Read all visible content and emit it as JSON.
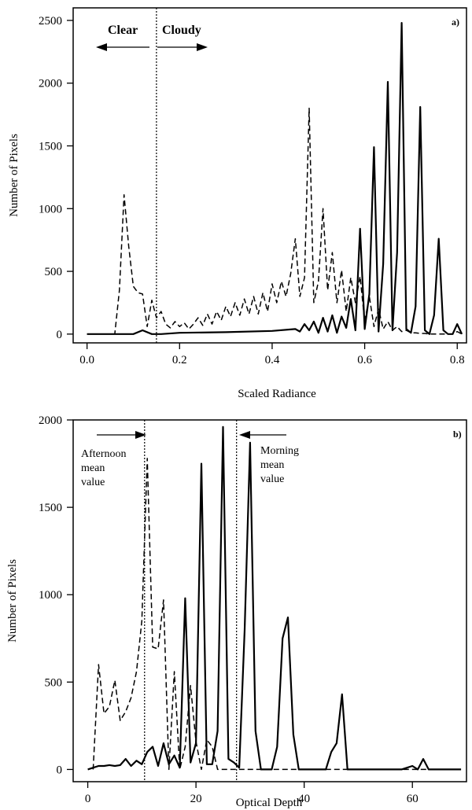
{
  "chart_data": [
    {
      "panel": "a)",
      "type": "line",
      "xlabel": "Scaled Radiance",
      "ylabel": "Number of Pixels",
      "xlim": [
        -0.03,
        0.82
      ],
      "ylim": [
        -70,
        2600
      ],
      "xticks": [
        0.0,
        0.2,
        0.4,
        0.6,
        0.8
      ],
      "xtick_labels": [
        "0.0",
        "0.2",
        "0.4",
        "0.6",
        "0.8"
      ],
      "yticks": [
        0,
        500,
        1000,
        1500,
        2000,
        2500
      ],
      "ytick_labels": [
        "0",
        "500",
        "1000",
        "1500",
        "2000",
        "2500"
      ],
      "threshold_x": 0.15,
      "annotations": {
        "left_label": "Clear",
        "right_label": "Cloudy"
      },
      "series": [
        {
          "style": "dashed",
          "x": [
            0.0,
            0.06,
            0.07,
            0.08,
            0.09,
            0.1,
            0.11,
            0.12,
            0.13,
            0.14,
            0.145,
            0.15,
            0.16,
            0.17,
            0.18,
            0.19,
            0.2,
            0.21,
            0.22,
            0.23,
            0.24,
            0.25,
            0.26,
            0.27,
            0.28,
            0.29,
            0.3,
            0.31,
            0.32,
            0.33,
            0.34,
            0.35,
            0.36,
            0.37,
            0.38,
            0.39,
            0.4,
            0.41,
            0.42,
            0.43,
            0.44,
            0.45,
            0.46,
            0.47,
            0.48,
            0.49,
            0.5,
            0.51,
            0.52,
            0.53,
            0.54,
            0.55,
            0.56,
            0.57,
            0.58,
            0.59,
            0.6,
            0.61,
            0.62,
            0.63,
            0.64,
            0.65,
            0.66,
            0.67,
            0.68,
            0.69,
            0.7,
            0.71,
            0.72,
            0.73,
            0.74,
            0.75,
            0.76,
            0.77,
            0.78,
            0.79,
            0.8,
            0.81
          ],
          "y": [
            0,
            0,
            350,
            1110,
            700,
            380,
            330,
            320,
            60,
            270,
            200,
            130,
            180,
            80,
            50,
            100,
            60,
            90,
            40,
            80,
            130,
            70,
            160,
            80,
            180,
            110,
            220,
            140,
            250,
            150,
            280,
            160,
            300,
            160,
            330,
            180,
            400,
            250,
            420,
            300,
            480,
            760,
            300,
            450,
            1800,
            250,
            420,
            1000,
            350,
            650,
            250,
            510,
            180,
            450,
            250,
            460,
            100,
            300,
            60,
            200,
            40,
            100,
            30,
            60,
            20,
            30,
            10,
            10,
            5,
            5,
            0,
            0,
            0,
            0,
            0,
            0,
            20,
            0
          ]
        },
        {
          "style": "solid",
          "x": [
            0.0,
            0.05,
            0.1,
            0.12,
            0.14,
            0.16,
            0.2,
            0.3,
            0.4,
            0.45,
            0.46,
            0.47,
            0.48,
            0.49,
            0.5,
            0.51,
            0.52,
            0.53,
            0.54,
            0.55,
            0.56,
            0.57,
            0.58,
            0.59,
            0.6,
            0.61,
            0.62,
            0.63,
            0.64,
            0.65,
            0.66,
            0.67,
            0.68,
            0.69,
            0.7,
            0.71,
            0.72,
            0.73,
            0.74,
            0.75,
            0.76,
            0.77,
            0.78,
            0.79,
            0.8,
            0.81
          ],
          "y": [
            0,
            0,
            0,
            30,
            0,
            0,
            10,
            15,
            25,
            40,
            20,
            80,
            30,
            100,
            10,
            130,
            20,
            150,
            10,
            140,
            50,
            280,
            30,
            840,
            40,
            320,
            1490,
            20,
            560,
            2010,
            30,
            650,
            2480,
            40,
            10,
            220,
            1810,
            30,
            0,
            150,
            760,
            30,
            0,
            0,
            80,
            0
          ]
        }
      ]
    },
    {
      "panel": "b)",
      "type": "line",
      "xlabel": "Optical Depth",
      "ylabel": "Number of Pixels",
      "xlim": [
        -2.7,
        70
      ],
      "ylim": [
        -70,
        2000
      ],
      "xticks": [
        0,
        20,
        40,
        60
      ],
      "xtick_labels": [
        "0",
        "20",
        "40",
        "60"
      ],
      "yticks": [
        0,
        500,
        1000,
        1500,
        2000
      ],
      "ytick_labels": [
        "0",
        "500",
        "1000",
        "1500",
        "2000"
      ],
      "afternoon_mean_x": 10.5,
      "morning_mean_x": 27.5,
      "annotations": {
        "afternoon_label": [
          "Afternoon",
          "mean",
          "value"
        ],
        "morning_label": [
          "Morning",
          "mean",
          "value"
        ]
      },
      "series": [
        {
          "style": "dashed",
          "x": [
            1,
            2,
            3,
            4,
            5,
            6,
            7,
            8,
            9,
            10,
            11,
            12,
            13,
            14,
            15,
            16,
            17,
            18,
            19,
            20,
            21,
            22,
            23,
            24,
            26,
            28,
            30,
            35,
            40,
            45,
            50,
            60,
            69
          ],
          "y": [
            0,
            600,
            320,
            360,
            510,
            280,
            330,
            410,
            560,
            850,
            1780,
            700,
            690,
            970,
            0,
            560,
            0,
            130,
            480,
            160,
            0,
            170,
            130,
            0,
            0,
            0,
            0,
            0,
            0,
            0,
            0,
            0,
            0
          ],
          "points_label": "afternoon"
        },
        {
          "style": "solid",
          "x": [
            0,
            1,
            2,
            3,
            4,
            5,
            6,
            7,
            8,
            9,
            10,
            11,
            12,
            13,
            14,
            15,
            16,
            17,
            18,
            19,
            20,
            21,
            22,
            23,
            24,
            25,
            26,
            27,
            28,
            29,
            30,
            31,
            32,
            33,
            34,
            35,
            36,
            37,
            38,
            39,
            40,
            42,
            44,
            45,
            46,
            47,
            48,
            49,
            50,
            52,
            55,
            58,
            60,
            61,
            62,
            63,
            65,
            69
          ],
          "y": [
            0,
            10,
            20,
            20,
            25,
            20,
            25,
            60,
            20,
            50,
            30,
            100,
            130,
            20,
            150,
            30,
            80,
            10,
            980,
            40,
            150,
            1750,
            30,
            30,
            220,
            1960,
            60,
            40,
            10,
            800,
            1870,
            220,
            0,
            0,
            0,
            130,
            750,
            870,
            200,
            0,
            0,
            0,
            0,
            100,
            150,
            430,
            0,
            0,
            0,
            0,
            0,
            0,
            20,
            0,
            60,
            0,
            0,
            0
          ],
          "points_label": "morning"
        }
      ]
    }
  ]
}
